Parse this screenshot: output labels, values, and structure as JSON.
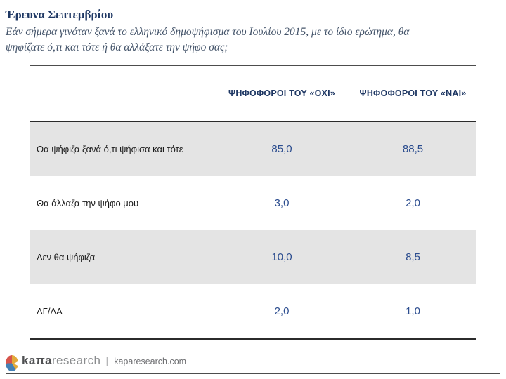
{
  "header": {
    "title": "Έρευνα Σεπτεμβρίου",
    "subtitle_line1": "Εάν σήμερα γινόταν ξανά το ελληνικό δημοψήφισμα του Ιουλίου 2015, με το ίδιο ερώτημα, θα",
    "subtitle_line2": "ψηφίζατε ό,τι και τότε ή θα αλλάξατε την ψήφο σας;"
  },
  "chart_data": {
    "type": "table",
    "title": "Έρευνα Σεπτεμβρίου",
    "question": "Εάν σήμερα γινόταν ξανά το ελληνικό δημοψήφισμα του Ιουλίου 2015, με το ίδιο ερώτημα, θα ψηφίζατε ό,τι και τότε ή θα αλλάξατε την ψήφο σας;",
    "columns": [
      "ΨΗΦΟΦΟΡΟΙ ΤΟΥ «ΟΧΙ»",
      "ΨΗΦΟΦΟΡΟΙ ΤΟΥ «ΝΑΙ»"
    ],
    "rows": [
      {
        "label": "Θα ψήφιζα ξανά ό,τι ψήφισα και τότε",
        "values": [
          "85,0",
          "88,5"
        ]
      },
      {
        "label": "Θα άλλαζα την ψήφο μου",
        "values": [
          "3,0",
          "2,0"
        ]
      },
      {
        "label": "Δεν θα ψήφιζα",
        "values": [
          "10,0",
          "8,5"
        ]
      },
      {
        "label": "ΔΓ/ΔΑ",
        "values": [
          "2,0",
          "1,0"
        ]
      }
    ],
    "values_numeric": {
      "oxi": [
        85.0,
        3.0,
        10.0,
        2.0
      ],
      "nai": [
        88.5,
        2.0,
        8.5,
        1.0
      ]
    },
    "unit": "percent"
  },
  "footer": {
    "logo_bold": "kaπa",
    "logo_light": "research",
    "separator": "|",
    "site": "kaparesearch.com"
  },
  "colors": {
    "navy": "#1f3864",
    "value_blue": "#2c4d8f",
    "subtitle_gray": "#44546a",
    "row_gray": "#e4e4e4",
    "rule_dark": "#4d4d4d",
    "table_border": "#2b2b2b",
    "logo_red": "#d6544b",
    "logo_blue": "#4380b5",
    "logo_yellow": "#e2a93b",
    "logo_text_dark": "#4f5052",
    "logo_text_light": "#8a8c8e"
  }
}
